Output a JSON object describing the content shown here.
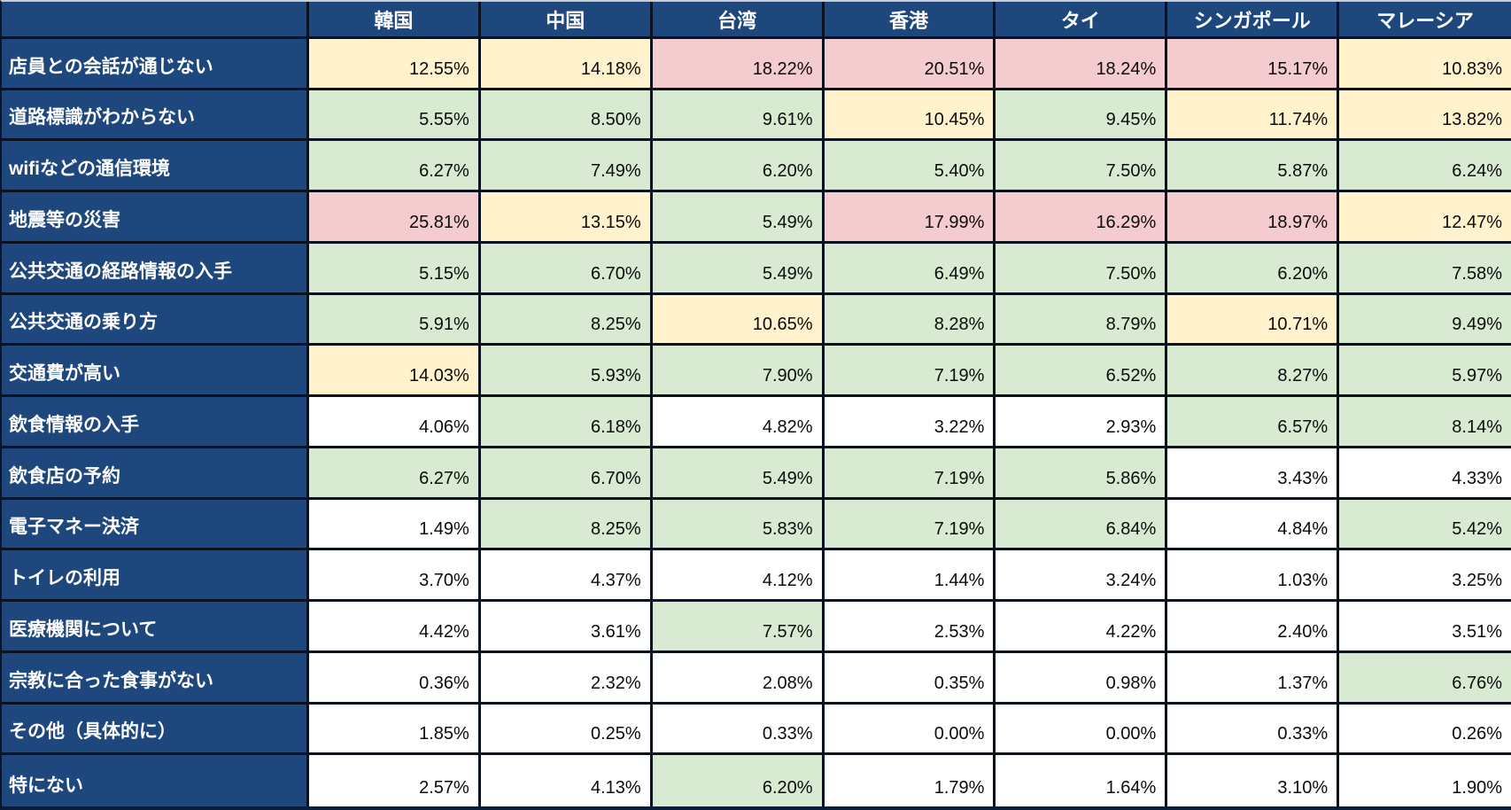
{
  "table": {
    "corner_label": "",
    "columns": [
      "韓国",
      "中国",
      "台湾",
      "香港",
      "タイ",
      "シンガポール",
      "マレーシア"
    ],
    "rows": [
      {
        "label": "店員との会話が通じない",
        "values": [
          12.55,
          14.18,
          18.22,
          20.51,
          18.24,
          15.17,
          10.83
        ]
      },
      {
        "label": "道路標識がわからない",
        "values": [
          5.55,
          8.5,
          9.61,
          10.45,
          9.45,
          11.74,
          13.82
        ]
      },
      {
        "label": "wifiなどの通信環境",
        "values": [
          6.27,
          7.49,
          6.2,
          5.4,
          7.5,
          5.87,
          6.24
        ]
      },
      {
        "label": "地震等の災害",
        "values": [
          25.81,
          13.15,
          5.49,
          17.99,
          16.29,
          18.97,
          12.47
        ]
      },
      {
        "label": "公共交通の経路情報の入手",
        "values": [
          5.15,
          6.7,
          5.49,
          6.49,
          7.5,
          6.2,
          7.58
        ]
      },
      {
        "label": "公共交通の乗り方",
        "values": [
          5.91,
          8.25,
          10.65,
          8.28,
          8.79,
          10.71,
          9.49
        ]
      },
      {
        "label": "交通費が高い",
        "values": [
          14.03,
          5.93,
          7.9,
          7.19,
          6.52,
          8.27,
          5.97
        ]
      },
      {
        "label": "飲食情報の入手",
        "values": [
          4.06,
          6.18,
          4.82,
          3.22,
          2.93,
          6.57,
          8.14
        ]
      },
      {
        "label": "飲食店の予約",
        "values": [
          6.27,
          6.7,
          5.49,
          7.19,
          5.86,
          3.43,
          4.33
        ]
      },
      {
        "label": "電子マネー決済",
        "values": [
          1.49,
          8.25,
          5.83,
          7.19,
          6.84,
          4.84,
          5.42
        ]
      },
      {
        "label": "トイレの利用",
        "values": [
          3.7,
          4.37,
          4.12,
          1.44,
          3.24,
          1.03,
          3.25
        ]
      },
      {
        "label": "医療機関について",
        "values": [
          4.42,
          3.61,
          7.57,
          2.53,
          4.22,
          2.4,
          3.51
        ]
      },
      {
        "label": "宗教に合った食事がない",
        "values": [
          0.36,
          2.32,
          2.08,
          0.35,
          0.98,
          1.37,
          6.76
        ]
      },
      {
        "label": "その他（具体的に）",
        "values": [
          1.85,
          0.25,
          0.33,
          0.0,
          0.0,
          0.33,
          0.26
        ]
      },
      {
        "label": "特にない",
        "values": [
          2.57,
          4.13,
          6.2,
          1.79,
          1.64,
          3.1,
          1.9
        ]
      }
    ],
    "value_suffix": "%",
    "decimals": 2
  },
  "colors": {
    "header_bg": "#1E487D",
    "header_text": "#FFFFFF",
    "value_text": "#0B0B0B",
    "cell_pink": "#F4CBCE",
    "cell_yellow": "#FFF2CC",
    "cell_green": "#D9EAD3",
    "cell_white": "#FFFFFF",
    "grid_line": "#0A1220",
    "value_thresholds": {
      "pink_min": 15,
      "yellow_min": 10,
      "green_min": 5
    }
  },
  "chart_data": {
    "type": "heatmap",
    "title": "",
    "columns": [
      "韓国",
      "中国",
      "台湾",
      "香港",
      "タイ",
      "シンガポール",
      "マレーシア"
    ],
    "row_categories": [
      "店員との会話が通じない",
      "道路標識がわからない",
      "wifiなどの通信環境",
      "地震等の災害",
      "公共交通の経路情報の入手",
      "公共交通の乗り方",
      "交通費が高い",
      "飲食情報の入手",
      "飲食店の予約",
      "電子マネー決済",
      "トイレの利用",
      "医療機関について",
      "宗教に合った食事がない",
      "その他（具体的に）",
      "特にない"
    ],
    "values_percent": [
      [
        12.55,
        14.18,
        18.22,
        20.51,
        18.24,
        15.17,
        10.83
      ],
      [
        5.55,
        8.5,
        9.61,
        10.45,
        9.45,
        11.74,
        13.82
      ],
      [
        6.27,
        7.49,
        6.2,
        5.4,
        7.5,
        5.87,
        6.24
      ],
      [
        25.81,
        13.15,
        5.49,
        17.99,
        16.29,
        18.97,
        12.47
      ],
      [
        5.15,
        6.7,
        5.49,
        6.49,
        7.5,
        6.2,
        7.58
      ],
      [
        5.91,
        8.25,
        10.65,
        8.28,
        8.79,
        10.71,
        9.49
      ],
      [
        14.03,
        5.93,
        7.9,
        7.19,
        6.52,
        8.27,
        5.97
      ],
      [
        4.06,
        6.18,
        4.82,
        3.22,
        2.93,
        6.57,
        8.14
      ],
      [
        6.27,
        6.7,
        5.49,
        7.19,
        5.86,
        3.43,
        4.33
      ],
      [
        1.49,
        8.25,
        5.83,
        7.19,
        6.84,
        4.84,
        5.42
      ],
      [
        3.7,
        4.37,
        4.12,
        1.44,
        3.24,
        1.03,
        3.25
      ],
      [
        4.42,
        3.61,
        7.57,
        2.53,
        4.22,
        2.4,
        3.51
      ],
      [
        0.36,
        2.32,
        2.08,
        0.35,
        0.98,
        1.37,
        6.76
      ],
      [
        1.85,
        0.25,
        0.33,
        0.0,
        0.0,
        0.33,
        0.26
      ],
      [
        2.57,
        4.13,
        6.2,
        1.79,
        1.64,
        3.1,
        1.9
      ]
    ],
    "cell_color_rule": {
      "pink": ">=15%",
      "yellow": ">=10%",
      "green": ">=5%",
      "white": "<5%"
    },
    "grid": true,
    "legend_position": "none"
  }
}
